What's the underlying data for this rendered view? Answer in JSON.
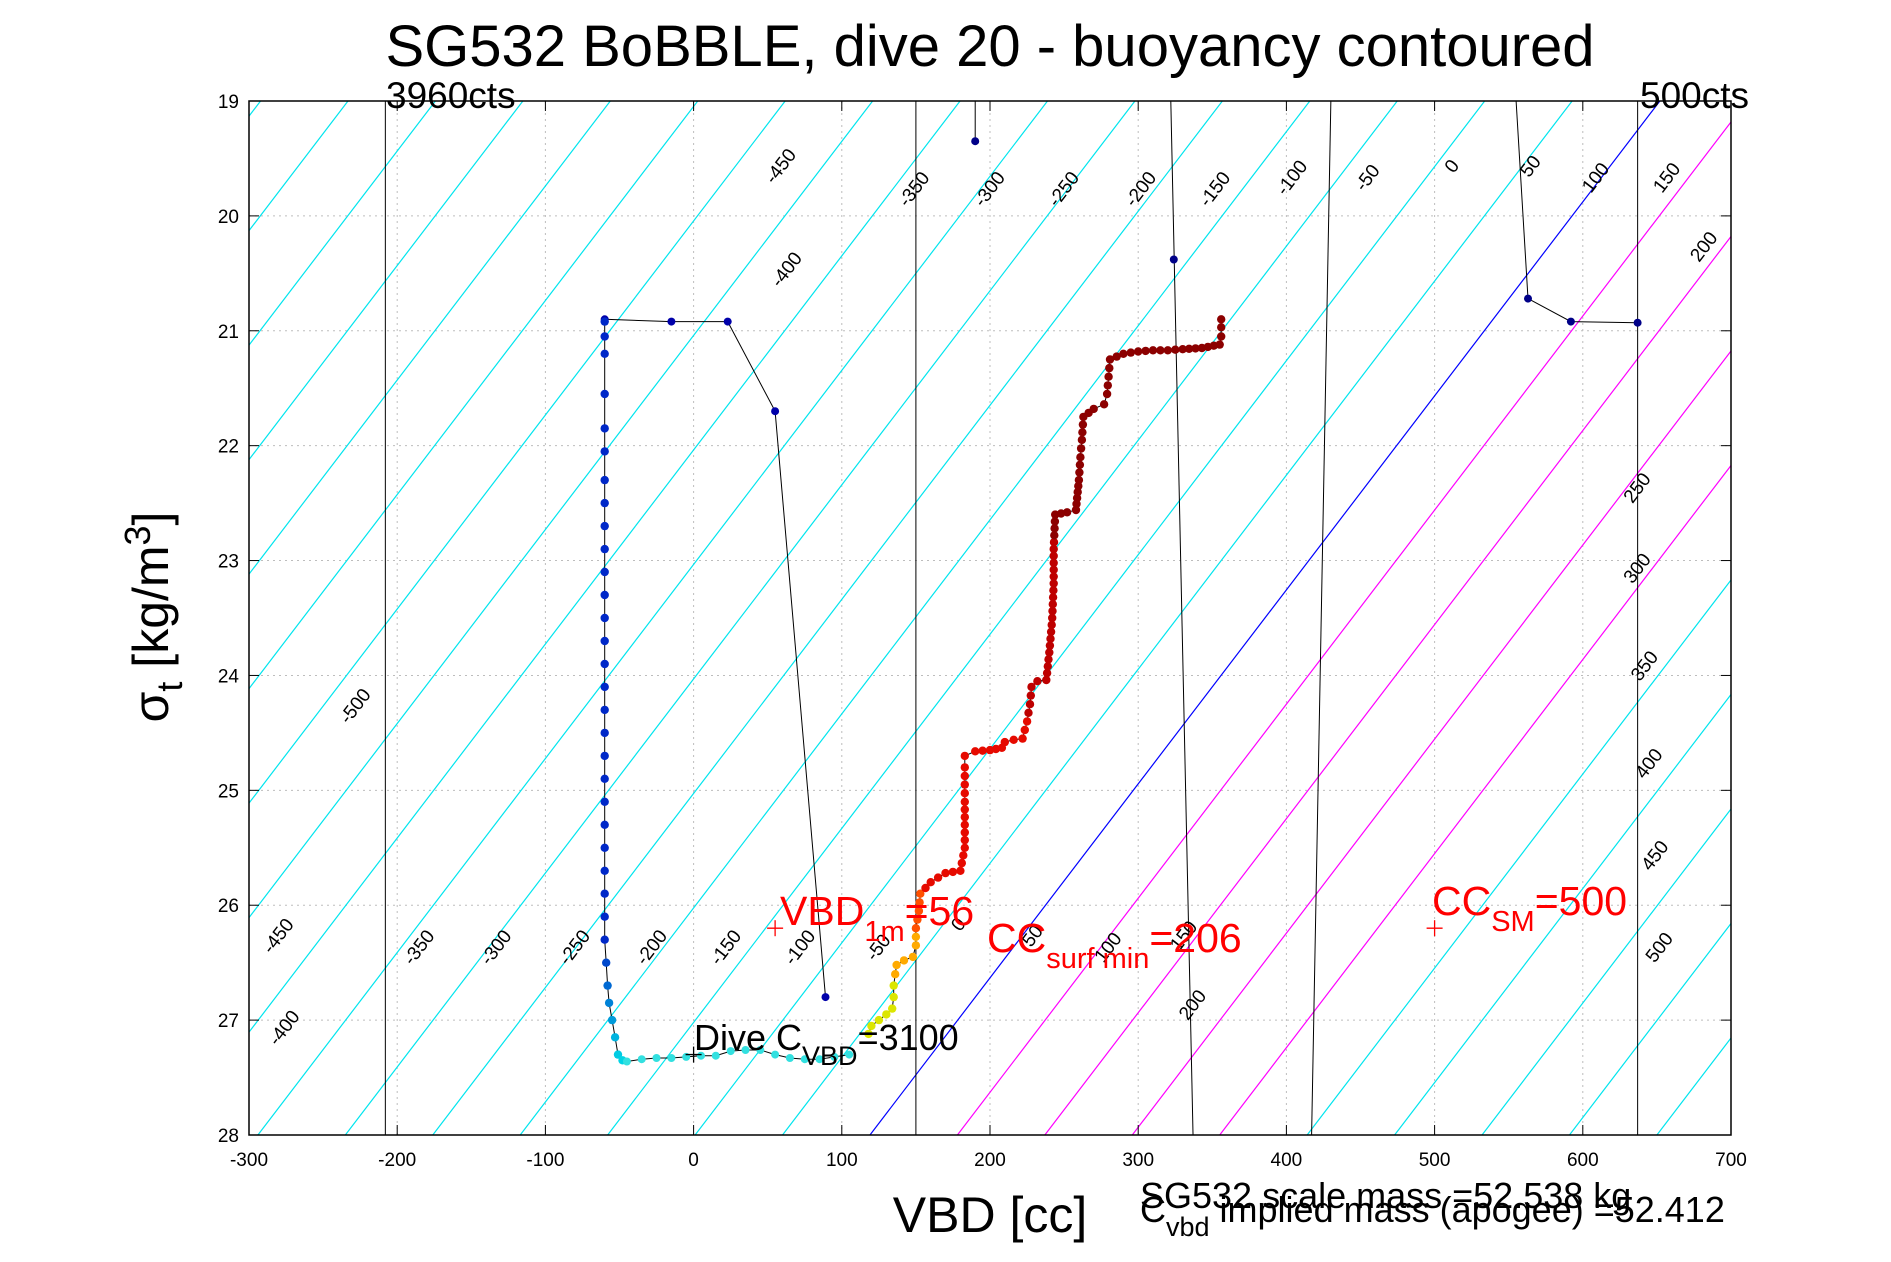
{
  "chart_data": {
    "type": "scatter",
    "title": "SG532 BoBBLE, dive 20 - buoyancy contoured",
    "xlabel": "VBD [cc]",
    "ylabel": {
      "symbol": "σ",
      "sub": "t",
      "text": " [kg/m",
      "sup": "3",
      "end": "]"
    },
    "xlim": [
      -300,
      700
    ],
    "ylim": [
      28,
      19
    ],
    "x_ticks": [
      -300,
      -200,
      -100,
      0,
      100,
      200,
      300,
      400,
      500,
      600,
      700
    ],
    "y_ticks": [
      19,
      20,
      21,
      22,
      23,
      24,
      25,
      26,
      27,
      28
    ],
    "grid": true,
    "colors": {
      "contour": "#00e5ee",
      "contour_magenta": "#ff00ff",
      "neutral_line": "#0000ff",
      "count_line": "#000000",
      "annotation": "#ff0000"
    },
    "count_lines": [
      {
        "label": "3960cts",
        "x": -208
      },
      {
        "label": "500cts",
        "x": 637
      }
    ],
    "vertical_lines": [
      {
        "points": [
          [
            -208,
            19
          ],
          [
            -208,
            28
          ]
        ]
      },
      {
        "points": [
          [
            150,
            19
          ],
          [
            150,
            28
          ]
        ]
      },
      {
        "points": [
          [
            637,
            19
          ],
          [
            637,
            28
          ]
        ]
      },
      {
        "points": [
          [
            322,
            19
          ],
          [
            337,
            28
          ]
        ]
      },
      {
        "points": [
          [
            430,
            19
          ],
          [
            417,
            28
          ]
        ]
      }
    ],
    "neutral_line": {
      "label": "0",
      "points": [
        [
          119,
          28
        ],
        [
          652,
          19
        ]
      ]
    },
    "contour_slope_vbd_per_sigma": -59.2,
    "contour_step": 50,
    "contour_levels": [
      -1000,
      -950,
      -900,
      -850,
      -800,
      -750,
      -700,
      -650,
      -600,
      -550,
      -500,
      -450,
      -400,
      -350,
      -300,
      -250,
      -200,
      -150,
      -100,
      -50,
      0,
      50,
      100,
      150,
      200,
      250,
      300,
      350,
      400,
      450,
      500
    ],
    "magenta_levels": [
      50,
      100,
      150,
      200
    ],
    "contour_labels": [
      {
        "text": "-450",
        "x": 62,
        "y": 19.6
      },
      {
        "text": "-400",
        "x": 66,
        "y": 20.5
      },
      {
        "text": "-350",
        "x": 152,
        "y": 19.8
      },
      {
        "text": "-300",
        "x": 203,
        "y": 19.8
      },
      {
        "text": "-250",
        "x": 253,
        "y": 19.8
      },
      {
        "text": "-200",
        "x": 305,
        "y": 19.8
      },
      {
        "text": "-150",
        "x": 355,
        "y": 19.8
      },
      {
        "text": "-100",
        "x": 407,
        "y": 19.7
      },
      {
        "text": "-50",
        "x": 458,
        "y": 19.7
      },
      {
        "text": "0",
        "x": 515,
        "y": 19.6
      },
      {
        "text": "50",
        "x": 568,
        "y": 19.6
      },
      {
        "text": "100",
        "x": 612,
        "y": 19.7
      },
      {
        "text": "150",
        "x": 660,
        "y": 19.7
      },
      {
        "text": "200",
        "x": 685,
        "y": 20.3
      },
      {
        "text": "250",
        "x": 640,
        "y": 22.4
      },
      {
        "text": "300",
        "x": 640,
        "y": 23.1
      },
      {
        "text": "350",
        "x": 645,
        "y": 23.95
      },
      {
        "text": "400",
        "x": 648,
        "y": 24.8
      },
      {
        "text": "450",
        "x": 652,
        "y": 25.6
      },
      {
        "text": "500",
        "x": 655,
        "y": 26.4
      },
      {
        "text": "-500",
        "x": -225,
        "y": 24.3
      },
      {
        "text": "-450",
        "x": -277,
        "y": 26.3
      },
      {
        "text": "-400",
        "x": -273,
        "y": 27.1
      },
      {
        "text": "-350",
        "x": -182,
        "y": 26.4
      },
      {
        "text": "-300",
        "x": -130,
        "y": 26.4
      },
      {
        "text": "-250",
        "x": -77,
        "y": 26.4
      },
      {
        "text": "-200",
        "x": -25,
        "y": 26.4
      },
      {
        "text": "-150",
        "x": 25,
        "y": 26.4
      },
      {
        "text": "-100",
        "x": 75,
        "y": 26.4
      },
      {
        "text": "-50",
        "x": 128,
        "y": 26.4
      },
      {
        "text": "0",
        "x": 182,
        "y": 26.2
      },
      {
        "text": "50",
        "x": 232,
        "y": 26.3
      },
      {
        "text": "100",
        "x": 283,
        "y": 26.4
      },
      {
        "text": "150",
        "x": 334,
        "y": 26.3
      },
      {
        "text": "200",
        "x": 340,
        "y": 26.9
      }
    ],
    "descent_series": {
      "name": "dive",
      "color": "#0000aa",
      "points": [
        [
          -60,
          20.9
        ],
        [
          -15,
          20.92
        ],
        [
          23,
          20.92
        ],
        [
          55,
          21.7
        ],
        [
          89,
          26.8
        ],
        [
          -60,
          20.92
        ],
        [
          -60,
          21.05
        ],
        [
          -60,
          21.2
        ],
        [
          -60,
          21.55
        ],
        [
          -60,
          21.85
        ],
        [
          -60,
          22.05
        ],
        [
          -60,
          22.3
        ],
        [
          -60,
          22.5
        ],
        [
          -60,
          22.7
        ],
        [
          -60,
          22.9
        ],
        [
          -60,
          23.1
        ],
        [
          -60,
          23.3
        ],
        [
          -60,
          23.5
        ],
        [
          -60,
          23.7
        ],
        [
          -60,
          23.9
        ],
        [
          -60,
          24.1
        ],
        [
          -60,
          24.3
        ],
        [
          -60,
          24.5
        ],
        [
          -60,
          24.7
        ],
        [
          -60,
          24.9
        ],
        [
          -60,
          25.1
        ],
        [
          -60,
          25.3
        ],
        [
          -60,
          25.5
        ],
        [
          -60,
          25.7
        ],
        [
          -60,
          25.9
        ],
        [
          -60,
          26.1
        ],
        [
          -60,
          26.3
        ],
        [
          -59,
          26.5
        ],
        [
          -58,
          26.7
        ],
        [
          -57,
          26.85
        ],
        [
          -55,
          27.0
        ],
        [
          -53,
          27.15
        ],
        [
          -51,
          27.3
        ],
        [
          -48,
          27.35
        ]
      ]
    },
    "bottom_series": {
      "name": "apogee",
      "color": "#33e0e0",
      "points": [
        [
          -45,
          27.36
        ],
        [
          -35,
          27.34
        ],
        [
          -25,
          27.33
        ],
        [
          -15,
          27.33
        ],
        [
          -5,
          27.32
        ],
        [
          5,
          27.31
        ],
        [
          15,
          27.31
        ],
        [
          25,
          27.27
        ],
        [
          35,
          27.26
        ],
        [
          45,
          27.26
        ],
        [
          55,
          27.3
        ],
        [
          65,
          27.33
        ],
        [
          75,
          27.34
        ],
        [
          85,
          27.34
        ],
        [
          95,
          27.32
        ],
        [
          105,
          27.3
        ]
      ]
    },
    "climb_series": {
      "name": "climb",
      "points": [
        [
          118,
          27.12
        ],
        [
          120,
          27.05
        ],
        [
          125,
          27.0
        ],
        [
          130,
          26.95
        ],
        [
          134,
          26.9
        ],
        [
          135,
          26.8
        ],
        [
          135,
          26.7
        ],
        [
          136,
          26.6
        ],
        [
          137,
          26.52
        ],
        [
          142,
          26.48
        ],
        [
          148,
          26.45
        ],
        [
          150,
          26.35
        ],
        [
          150,
          26.2
        ],
        [
          152,
          26.05
        ],
        [
          153,
          25.9
        ],
        [
          160,
          25.8
        ],
        [
          170,
          25.72
        ],
        [
          180,
          25.7
        ],
        [
          183,
          25.5
        ],
        [
          183,
          25.3
        ],
        [
          183,
          25.1
        ],
        [
          183,
          24.95
        ],
        [
          183,
          24.8
        ],
        [
          183,
          24.7
        ],
        [
          190,
          24.66
        ],
        [
          200,
          24.65
        ],
        [
          208,
          24.63
        ],
        [
          210,
          24.58
        ],
        [
          216,
          24.56
        ],
        [
          222,
          24.55
        ],
        [
          225,
          24.4
        ],
        [
          227,
          24.25
        ],
        [
          228,
          24.1
        ],
        [
          232,
          24.05
        ],
        [
          238,
          24.04
        ],
        [
          240,
          23.8
        ],
        [
          242,
          23.5
        ],
        [
          243,
          23.2
        ],
        [
          243,
          22.9
        ],
        [
          244,
          22.6
        ],
        [
          252,
          22.58
        ],
        [
          258,
          22.56
        ],
        [
          260,
          22.3
        ],
        [
          261,
          22.1
        ],
        [
          262,
          21.95
        ],
        [
          263,
          21.75
        ],
        [
          270,
          21.68
        ],
        [
          277,
          21.64
        ],
        [
          279,
          21.55
        ],
        [
          280,
          21.4
        ],
        [
          281,
          21.25
        ],
        [
          290,
          21.2
        ],
        [
          300,
          21.18
        ],
        [
          310,
          21.17
        ],
        [
          320,
          21.17
        ],
        [
          330,
          21.16
        ],
        [
          343,
          21.15
        ],
        [
          355,
          21.12
        ],
        [
          356,
          21.05
        ],
        [
          356,
          20.97
        ],
        [
          356,
          20.9
        ]
      ]
    },
    "surface_series": {
      "name": "surface",
      "color": "#000088",
      "points": [
        [
          190,
          19.35
        ],
        [
          324,
          20.38
        ],
        [
          563,
          20.72
        ],
        [
          592,
          20.92
        ],
        [
          637,
          20.93
        ]
      ]
    },
    "surface_lines": [
      {
        "points": [
          [
            190,
            19.0
          ],
          [
            190,
            19.35
          ]
        ]
      },
      {
        "points": [
          [
            555,
            19.0
          ],
          [
            563,
            20.72
          ],
          [
            592,
            20.92
          ],
          [
            637,
            20.93
          ]
        ]
      }
    ],
    "annotations": [
      {
        "name": "vbd-1m",
        "marker": [
          55,
          26.2
        ],
        "main": "VBD",
        "sub": "1m",
        "rest": "=56",
        "color": "#ff0000"
      },
      {
        "name": "cc-surf-min",
        "main": "CC",
        "sub": "surf min",
        "rest": "=206",
        "color": "#ff0000"
      },
      {
        "name": "cc-sm",
        "marker": [
          500,
          26.2
        ],
        "main": "CC",
        "sub": "SM",
        "rest": "=500",
        "color": "#ff0000"
      },
      {
        "name": "dive-cvbd",
        "marker": [
          0,
          27.3
        ],
        "main": "Dive C",
        "sub": "VBD",
        "rest": "=3100",
        "color": "#000000"
      }
    ],
    "footer": {
      "scale_mass": "SG532 scale mass =52.538 kg",
      "implied_main": "C",
      "implied_sub": "vbd",
      "implied_rest": " implied mass (apogee) =52.412"
    }
  }
}
